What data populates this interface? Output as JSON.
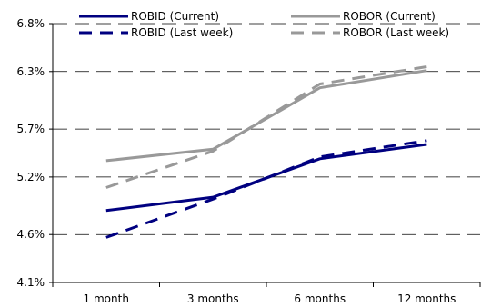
{
  "chart_data": {
    "type": "line",
    "title": "",
    "xlabel": "",
    "ylabel": "",
    "categories": [
      "1 month",
      "3 months",
      "6 months",
      "12 months"
    ],
    "y_ticks": [
      "4.1%",
      "4.6%",
      "5.2%",
      "5.7%",
      "6.3%",
      "6.8%"
    ],
    "ylim": [
      4.1,
      6.8
    ],
    "grid": "horizontal dashed",
    "legend_placement": "top",
    "series": [
      {
        "name": "ROBID (Current)",
        "color": "#000080",
        "dash": "solid",
        "values": [
          4.85,
          4.99,
          5.39,
          5.54
        ]
      },
      {
        "name": "ROBID (Last week)",
        "color": "#000080",
        "dash": "dashed",
        "values": [
          4.57,
          4.97,
          5.41,
          5.58
        ]
      },
      {
        "name": "ROBOR (Current)",
        "color": "#999999",
        "dash": "solid",
        "values": [
          5.37,
          5.49,
          6.13,
          6.31
        ]
      },
      {
        "name": "ROBOR (Last week)",
        "color": "#999999",
        "dash": "dashed",
        "values": [
          5.09,
          5.47,
          6.17,
          6.35
        ]
      }
    ]
  }
}
